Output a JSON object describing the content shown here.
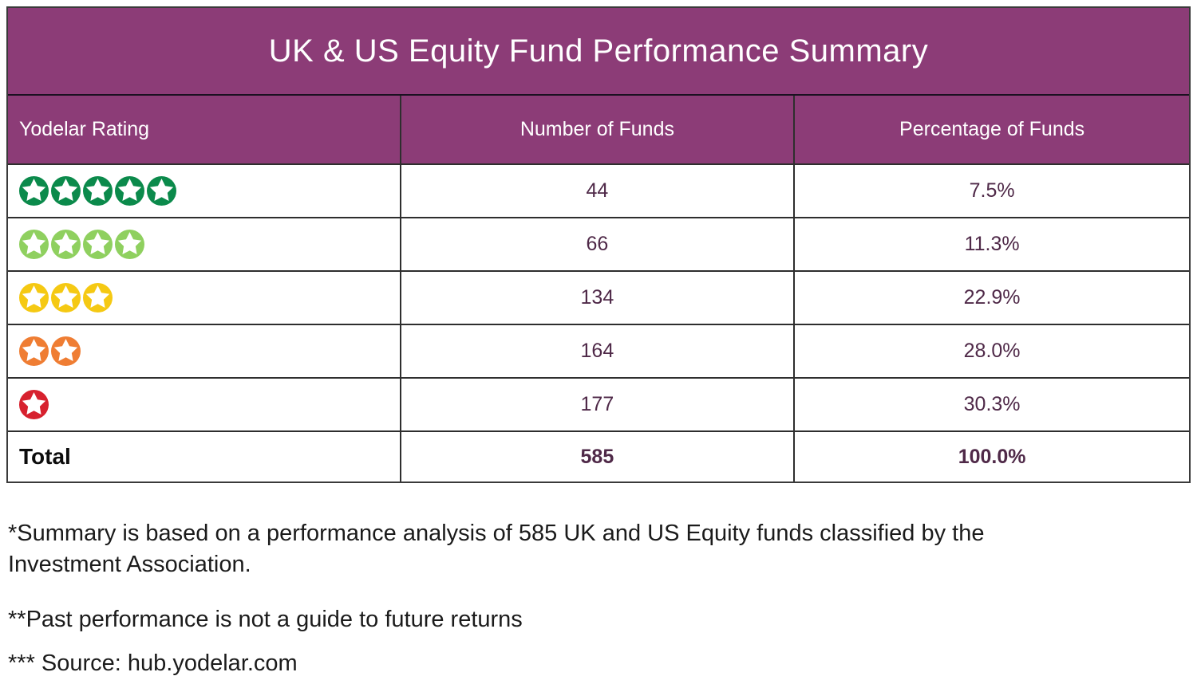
{
  "title": "UK & US Equity Fund Performance Summary",
  "columns": [
    "Yodelar Rating",
    "Number of Funds",
    "Percentage of Funds"
  ],
  "colors": {
    "header_bg": "#8C3C77",
    "border": "#2e2e2e",
    "value_text": "#4F2948",
    "star_5": "#0B8A4B",
    "star_4": "#8FD05F",
    "star_3": "#F5C913",
    "star_2": "#EF7D33",
    "star_1": "#D7212E"
  },
  "rows": [
    {
      "stars": 5,
      "color": "#0B8A4B",
      "funds": "44",
      "pct": "7.5%"
    },
    {
      "stars": 4,
      "color": "#8FD05F",
      "funds": "66",
      "pct": "11.3%"
    },
    {
      "stars": 3,
      "color": "#F5C913",
      "funds": "134",
      "pct": "22.9%"
    },
    {
      "stars": 2,
      "color": "#EF7D33",
      "funds": "164",
      "pct": "28.0%"
    },
    {
      "stars": 1,
      "color": "#D7212E",
      "funds": "177",
      "pct": "30.3%"
    }
  ],
  "total": {
    "label": "Total",
    "funds": "585",
    "pct": "100.0%"
  },
  "footnotes": [
    "*Summary is based on a performance analysis of 585 UK and US Equity funds classified by the Investment Association.",
    "**Past performance is not a guide to future returns",
    "*** Source: hub.yodelar.com"
  ],
  "chart_data": {
    "type": "table",
    "title": "UK & US Equity Fund Performance Summary",
    "columns": [
      "Yodelar Rating",
      "Number of Funds",
      "Percentage of Funds"
    ],
    "rows": [
      {
        "rating_stars": 5,
        "number_of_funds": 44,
        "percentage_of_funds": 7.5
      },
      {
        "rating_stars": 4,
        "number_of_funds": 66,
        "percentage_of_funds": 11.3
      },
      {
        "rating_stars": 3,
        "number_of_funds": 134,
        "percentage_of_funds": 22.9
      },
      {
        "rating_stars": 2,
        "number_of_funds": 164,
        "percentage_of_funds": 28.0
      },
      {
        "rating_stars": 1,
        "number_of_funds": 177,
        "percentage_of_funds": 30.3
      }
    ],
    "total": {
      "number_of_funds": 585,
      "percentage_of_funds": 100.0
    },
    "legend_position": "none",
    "grid": true
  }
}
